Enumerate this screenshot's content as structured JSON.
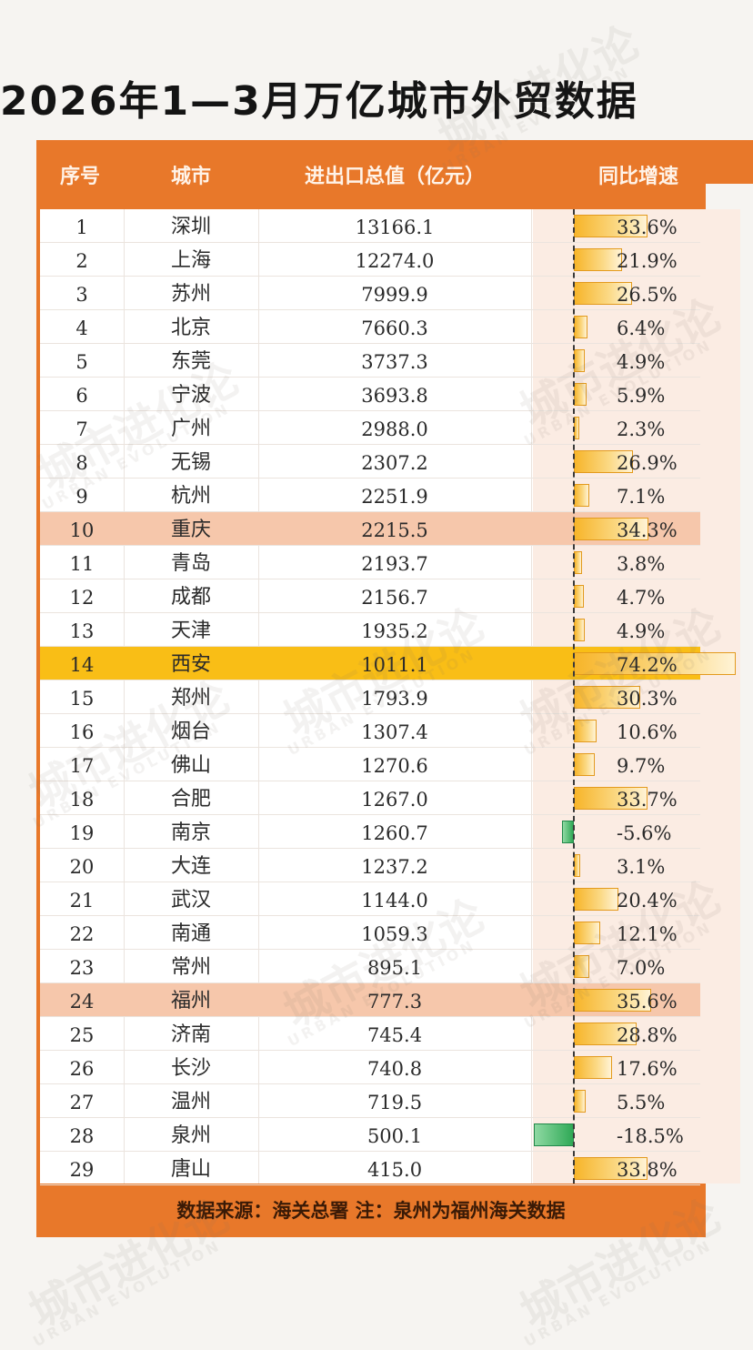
{
  "title": "2026年1—3月万亿城市外贸数据",
  "headers": {
    "no": "序号",
    "city": "城市",
    "value": "进出口总值（亿元）",
    "growth": "同比增速"
  },
  "rows": [
    {
      "no": "1",
      "city": "深圳",
      "value": "13166.1",
      "growth": "33.6%",
      "g": 33.6,
      "hl": ""
    },
    {
      "no": "2",
      "city": "上海",
      "value": "12274.0",
      "growth": "21.9%",
      "g": 21.9,
      "hl": ""
    },
    {
      "no": "3",
      "city": "苏州",
      "value": "7999.9",
      "growth": "26.5%",
      "g": 26.5,
      "hl": ""
    },
    {
      "no": "4",
      "city": "北京",
      "value": "7660.3",
      "growth": "6.4%",
      "g": 6.4,
      "hl": ""
    },
    {
      "no": "5",
      "city": "东莞",
      "value": "3737.3",
      "growth": "4.9%",
      "g": 4.9,
      "hl": ""
    },
    {
      "no": "6",
      "city": "宁波",
      "value": "3693.8",
      "growth": "5.9%",
      "g": 5.9,
      "hl": ""
    },
    {
      "no": "7",
      "city": "广州",
      "value": "2988.0",
      "growth": "2.3%",
      "g": 2.3,
      "hl": ""
    },
    {
      "no": "8",
      "city": "无锡",
      "value": "2307.2",
      "growth": "26.9%",
      "g": 26.9,
      "hl": ""
    },
    {
      "no": "9",
      "city": "杭州",
      "value": "2251.9",
      "growth": "7.1%",
      "g": 7.1,
      "hl": ""
    },
    {
      "no": "10",
      "city": "重庆",
      "value": "2215.5",
      "growth": "34.3%",
      "g": 34.3,
      "hl": "orange"
    },
    {
      "no": "11",
      "city": "青岛",
      "value": "2193.7",
      "growth": "3.8%",
      "g": 3.8,
      "hl": ""
    },
    {
      "no": "12",
      "city": "成都",
      "value": "2156.7",
      "growth": "4.7%",
      "g": 4.7,
      "hl": ""
    },
    {
      "no": "13",
      "city": "天津",
      "value": "1935.2",
      "growth": "4.9%",
      "g": 4.9,
      "hl": ""
    },
    {
      "no": "14",
      "city": "西安",
      "value": "1011.1",
      "growth": "74.2%",
      "g": 74.2,
      "hl": "yellow"
    },
    {
      "no": "15",
      "city": "郑州",
      "value": "1793.9",
      "growth": "30.3%",
      "g": 30.3,
      "hl": ""
    },
    {
      "no": "16",
      "city": "烟台",
      "value": "1307.4",
      "growth": "10.6%",
      "g": 10.6,
      "hl": ""
    },
    {
      "no": "17",
      "city": "佛山",
      "value": "1270.6",
      "growth": "9.7%",
      "g": 9.7,
      "hl": ""
    },
    {
      "no": "18",
      "city": "合肥",
      "value": "1267.0",
      "growth": "33.7%",
      "g": 33.7,
      "hl": ""
    },
    {
      "no": "19",
      "city": "南京",
      "value": "1260.7",
      "growth": "-5.6%",
      "g": -5.6,
      "hl": ""
    },
    {
      "no": "20",
      "city": "大连",
      "value": "1237.2",
      "growth": "3.1%",
      "g": 3.1,
      "hl": ""
    },
    {
      "no": "21",
      "city": "武汉",
      "value": "1144.0",
      "growth": "20.4%",
      "g": 20.4,
      "hl": ""
    },
    {
      "no": "22",
      "city": "南通",
      "value": "1059.3",
      "growth": "12.1%",
      "g": 12.1,
      "hl": ""
    },
    {
      "no": "23",
      "city": "常州",
      "value": "895.1",
      "growth": "7.0%",
      "g": 7.0,
      "hl": ""
    },
    {
      "no": "24",
      "city": "福州",
      "value": "777.3",
      "growth": "35.6%",
      "g": 35.6,
      "hl": "orange"
    },
    {
      "no": "25",
      "city": "济南",
      "value": "745.4",
      "growth": "28.8%",
      "g": 28.8,
      "hl": ""
    },
    {
      "no": "26",
      "city": "长沙",
      "value": "740.8",
      "growth": "17.6%",
      "g": 17.6,
      "hl": ""
    },
    {
      "no": "27",
      "city": "温州",
      "value": "719.5",
      "growth": "5.5%",
      "g": 5.5,
      "hl": ""
    },
    {
      "no": "28",
      "city": "泉州",
      "value": "500.1",
      "growth": "-18.5%",
      "g": -18.5,
      "hl": ""
    },
    {
      "no": "29",
      "city": "唐山",
      "value": "415.0",
      "growth": "33.8%",
      "g": 33.8,
      "hl": ""
    }
  ],
  "footer": "数据来源：海关总署   注：泉州为福州海关数据",
  "watermark": {
    "cn": "城市进化论",
    "en": "URBAN EVOLUTION"
  },
  "colors": {
    "frame": "#e8782a",
    "positive_bar": "#f7b52a",
    "negative_bar": "#2fa956",
    "highlight_orange": "#f6c7ab",
    "highlight_yellow": "#f9be16"
  }
}
